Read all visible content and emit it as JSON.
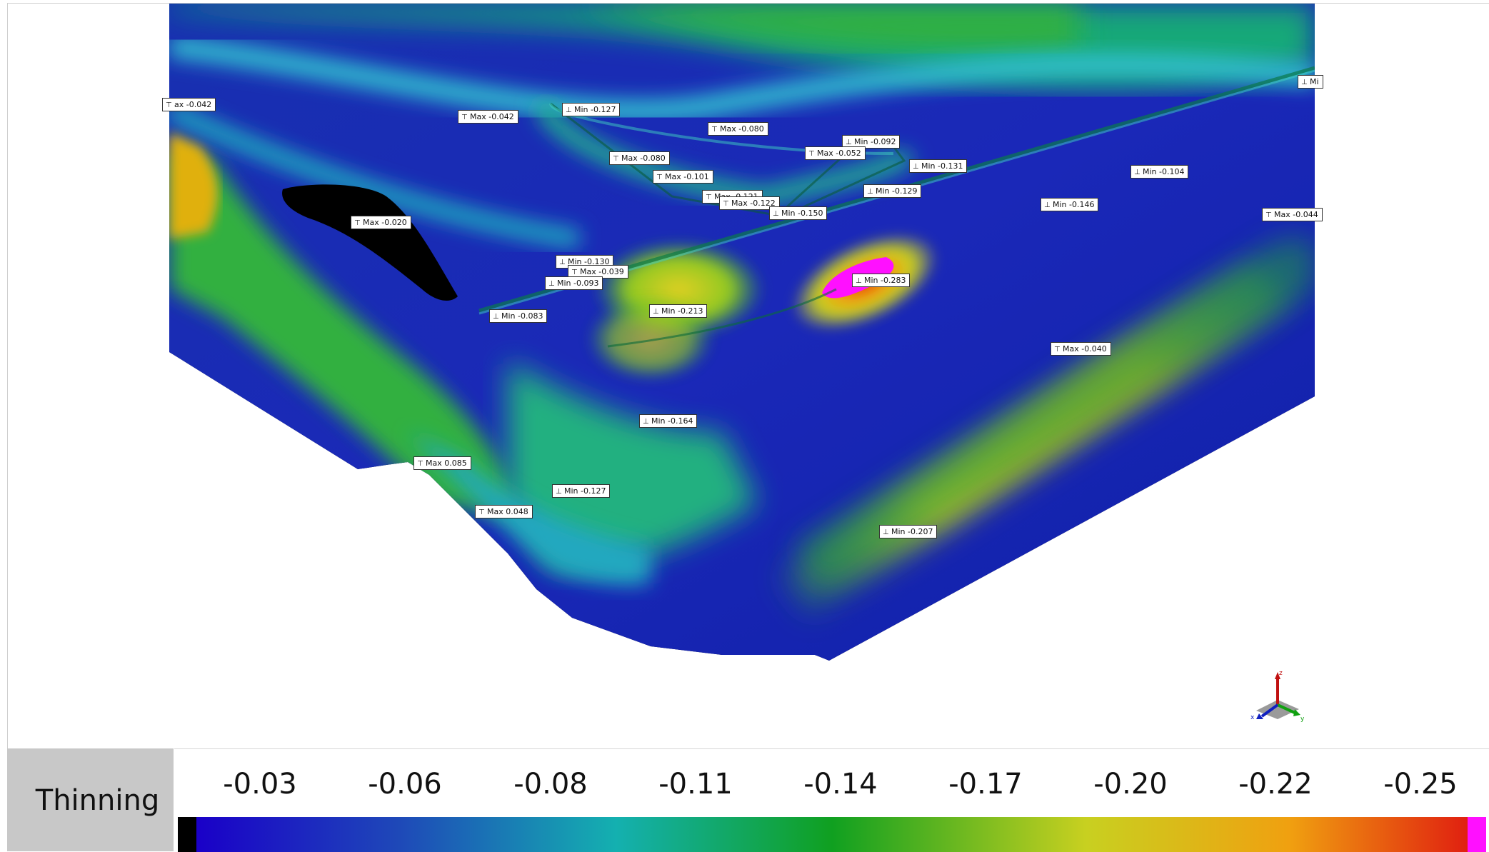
{
  "legend": {
    "title": "Thinning",
    "ticks": [
      "-0.03",
      "-0.06",
      "-0.08",
      "-0.11",
      "-0.14",
      "-0.17",
      "-0.20",
      "-0.22",
      "-0.25"
    ],
    "colors": {
      "below_range": "#000000",
      "gradient": [
        "#1a00c8",
        "#1e49b8",
        "#14b0b0",
        "#10a020",
        "#c8d020",
        "#f0a010",
        "#e02010"
      ],
      "above_range": "#ff10ff"
    }
  },
  "labels": [
    {
      "type": "Max",
      "icon": "max-marker-icon",
      "text": "ax -0.042"
    },
    {
      "type": "Max",
      "icon": "max-marker-icon",
      "text": "Max -0.042"
    },
    {
      "type": "Min",
      "icon": "min-marker-icon",
      "text": "Min -0.127"
    },
    {
      "type": "Max",
      "icon": "max-marker-icon",
      "text": "Max -0.080"
    },
    {
      "type": "Min",
      "icon": "min-marker-icon",
      "text": "Min -0.092"
    },
    {
      "type": "Max",
      "icon": "max-marker-icon",
      "text": "Max -0.052"
    },
    {
      "type": "Min",
      "icon": "min-marker-icon",
      "text": "Min -0.131"
    },
    {
      "type": "Max",
      "icon": "max-marker-icon",
      "text": "Max -0.080"
    },
    {
      "type": "Max",
      "icon": "max-marker-icon",
      "text": "Max -0.101"
    },
    {
      "type": "Min",
      "icon": "min-marker-icon",
      "text": "Min -0.129"
    },
    {
      "type": "Max",
      "icon": "max-marker-icon",
      "text": "Max -0.121"
    },
    {
      "type": "Max",
      "icon": "max-marker-icon",
      "text": "Max -0.122"
    },
    {
      "type": "Min",
      "icon": "min-marker-icon",
      "text": "Min -0.150"
    },
    {
      "type": "Min",
      "icon": "min-marker-icon",
      "text": "Min -0.104"
    },
    {
      "type": "Min",
      "icon": "min-marker-icon",
      "text": "Min -0.146"
    },
    {
      "type": "Max",
      "icon": "max-marker-icon",
      "text": "Max -0.044"
    },
    {
      "type": "Min",
      "icon": "min-marker-icon",
      "text": "Mi"
    },
    {
      "type": "Max",
      "icon": "max-marker-icon",
      "text": "Max -0.020"
    },
    {
      "type": "Min",
      "icon": "min-marker-icon",
      "text": "Min -0.130"
    },
    {
      "type": "Max",
      "icon": "max-marker-icon",
      "text": "Max -0.039"
    },
    {
      "type": "Min",
      "icon": "min-marker-icon",
      "text": "Min -0.093"
    },
    {
      "type": "Min",
      "icon": "min-marker-icon",
      "text": "Min -0.283"
    },
    {
      "type": "Min",
      "icon": "min-marker-icon",
      "text": "Min -0.083"
    },
    {
      "type": "Min",
      "icon": "min-marker-icon",
      "text": "Min -0.213"
    },
    {
      "type": "Max",
      "icon": "max-marker-icon",
      "text": "Max -0.040"
    },
    {
      "type": "Min",
      "icon": "min-marker-icon",
      "text": "Min -0.164"
    },
    {
      "type": "Max",
      "icon": "max-marker-icon",
      "text": "Max 0.085"
    },
    {
      "type": "Min",
      "icon": "min-marker-icon",
      "text": "Min -0.127"
    },
    {
      "type": "Max",
      "icon": "max-marker-icon",
      "text": "Max 0.048"
    },
    {
      "type": "Min",
      "icon": "min-marker-icon",
      "text": "Min -0.207"
    }
  ],
  "axis_triad": {
    "icon": "axis-triad-icon",
    "x": "x",
    "y": "y",
    "z": "z"
  }
}
